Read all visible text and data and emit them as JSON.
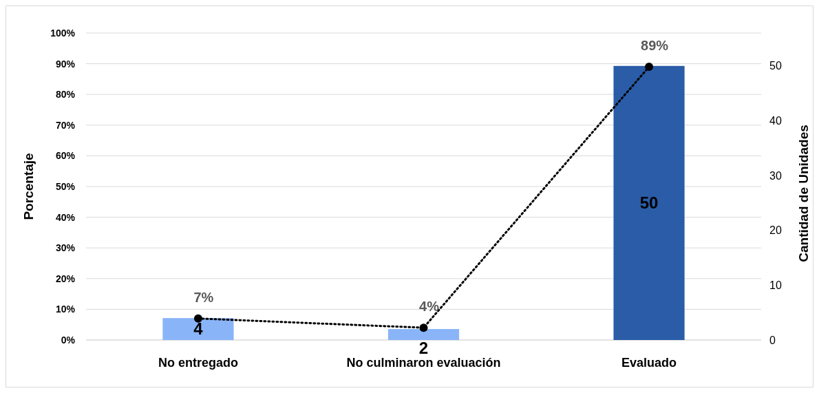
{
  "chart_data": {
    "type": "bar",
    "categories": [
      "No entregado",
      "No culminaron evaluación",
      "Evaluado"
    ],
    "ylabel": "Porcentaje",
    "y2label": "Cantidad de Unidades",
    "ylim": [
      0,
      100
    ],
    "yticks": [
      {
        "value": 0,
        "label": "0%"
      },
      {
        "value": 10,
        "label": "10%"
      },
      {
        "value": 20,
        "label": "20%"
      },
      {
        "value": 30,
        "label": "30%"
      },
      {
        "value": 40,
        "label": "40%"
      },
      {
        "value": 50,
        "label": "50%"
      },
      {
        "value": 60,
        "label": "60%"
      },
      {
        "value": 70,
        "label": "70%"
      },
      {
        "value": 80,
        "label": "80%"
      },
      {
        "value": 90,
        "label": "90%"
      },
      {
        "value": 100,
        "label": "100%"
      }
    ],
    "y2lim": [
      0,
      56
    ],
    "y2ticks": [
      0,
      10,
      20,
      30,
      40,
      50
    ],
    "grid": "y",
    "marker": "circle",
    "line_style": "dotted",
    "series": [
      {
        "axis": "y2",
        "values": [
          4,
          2,
          50
        ],
        "colors": [
          "#8ab4f8",
          "#8ab4f8",
          "#2a5ca8"
        ],
        "value_labels": [
          "4",
          "2",
          "50"
        ]
      },
      {
        "type": "line",
        "axis": "y",
        "color": "#000000",
        "values": [
          7,
          4,
          89
        ],
        "value_labels": [
          "7%",
          "4%",
          "89%"
        ]
      }
    ]
  }
}
